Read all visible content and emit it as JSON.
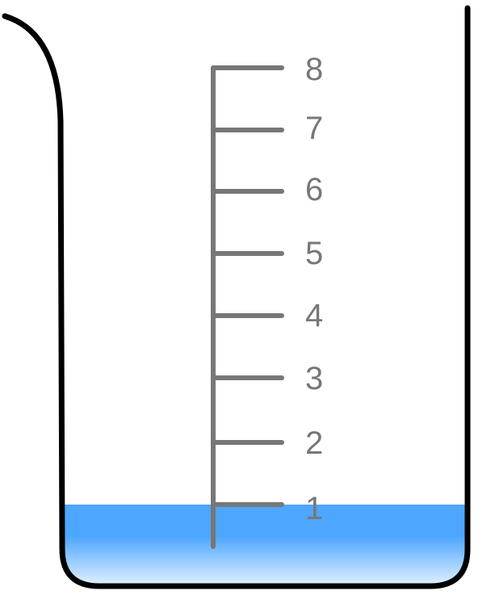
{
  "beaker": {
    "scale_labels": [
      "1",
      "2",
      "3",
      "4",
      "5",
      "6",
      "7",
      "8"
    ],
    "liquid_level": 1,
    "scale_max": 8,
    "colors": {
      "outline": "#000000",
      "scale": "#777777",
      "liquid_top": "#4da6ff",
      "liquid_bottom": "#ffffff"
    }
  }
}
